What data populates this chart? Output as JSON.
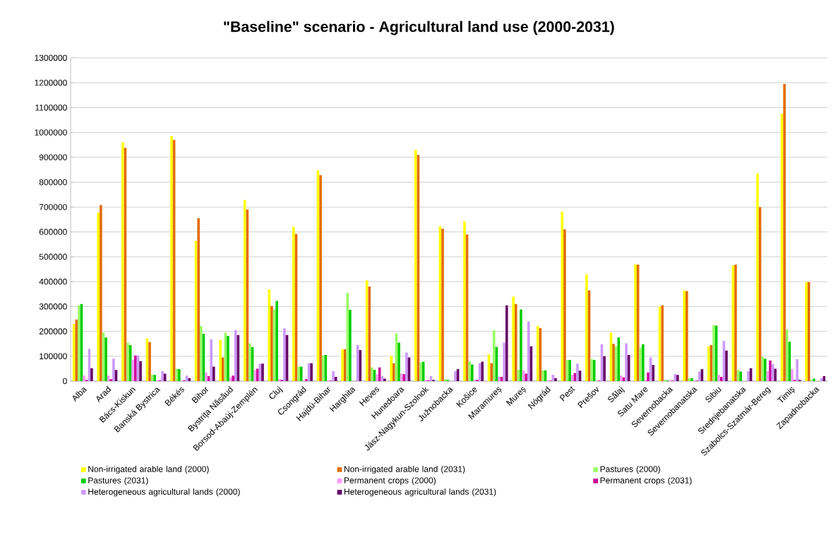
{
  "chart_data": {
    "type": "bar",
    "title": "\"Baseline\" scenario - Agricultural land use (2000-2031)",
    "categories": [
      "Alba",
      "Arad",
      "Bács-Kiskun",
      "Banská Bystrica",
      "Békés",
      "Bihor",
      "Bystrița Năsăud",
      "Borsod-Abaúj-Zemplén",
      "Cluj",
      "Csongrád",
      "Hajdú-Bihar",
      "Harghita",
      "Heves",
      "Hunedoara",
      "Jász-Nagykun-Szolnok",
      "Južnobacka",
      "Košice",
      "Maramureș",
      "Mureș",
      "Nógrád",
      "Pest",
      "Prešov",
      "Sălaj",
      "Satu Mare",
      "Severnobacka",
      "Severnobanatska",
      "Sibiu",
      "Srednjebanatska",
      "Szabolcs-Szatmár-Bereg",
      "Timiș",
      "Zapadnobacka"
    ],
    "series": [
      {
        "name": "Non-irrigated arable land (2000)",
        "color": "#ffff00",
        "values": [
          230000,
          678000,
          960000,
          172000,
          985000,
          565000,
          165000,
          728000,
          370000,
          620000,
          847000,
          128000,
          405000,
          102000,
          930000,
          623000,
          642000,
          107000,
          340000,
          222000,
          682000,
          430000,
          195000,
          470000,
          300000,
          365000,
          140000,
          465000,
          835000,
          1075000,
          398000
        ]
      },
      {
        "name": "Non-irrigated arable land (2031)",
        "color": "#e36c09",
        "values": [
          248000,
          708000,
          938000,
          157000,
          970000,
          655000,
          95000,
          690000,
          302000,
          592000,
          828000,
          128000,
          380000,
          72000,
          910000,
          613000,
          590000,
          72000,
          310000,
          213000,
          610000,
          365000,
          150000,
          468000,
          305000,
          362000,
          145000,
          468000,
          700000,
          1195000,
          398000
        ]
      },
      {
        "name": "Pastures (2000)",
        "color": "#99ff66",
        "values": [
          305000,
          195000,
          155000,
          25000,
          50000,
          222000,
          195000,
          152000,
          288000,
          58000,
          103000,
          355000,
          55000,
          192000,
          75000,
          8000,
          80000,
          205000,
          45000,
          43000,
          85000,
          88000,
          140000,
          135000,
          3000,
          12000,
          225000,
          45000,
          97000,
          208000,
          5000
        ]
      },
      {
        "name": "Pastures (2031)",
        "color": "#00cc00",
        "values": [
          310000,
          175000,
          145000,
          25000,
          48000,
          190000,
          182000,
          137000,
          322000,
          58000,
          105000,
          287000,
          45000,
          155000,
          78000,
          5000,
          67000,
          138000,
          288000,
          43000,
          85000,
          85000,
          175000,
          148000,
          3000,
          12000,
          223000,
          38000,
          90000,
          158000,
          10000
        ]
      },
      {
        "name": "Permanent crops (2000)",
        "color": "#ff99ff",
        "values": [
          22000,
          22000,
          85000,
          3000,
          2000,
          35000,
          15000,
          45000,
          8000,
          3000,
          2000,
          0,
          28000,
          30000,
          5000,
          0,
          5000,
          17000,
          43000,
          2000,
          25000,
          0,
          22000,
          5000,
          2000,
          2000,
          25000,
          0,
          40000,
          48000,
          0
        ]
      },
      {
        "name": "Permanent crops (2031)",
        "color": "#cc0099",
        "values": [
          5000,
          8000,
          103000,
          3000,
          3000,
          20000,
          22000,
          50000,
          5000,
          8000,
          2000,
          0,
          55000,
          28000,
          3000,
          0,
          5000,
          17000,
          30000,
          2000,
          32000,
          2000,
          15000,
          35000,
          2000,
          2000,
          17000,
          0,
          83000,
          5000,
          0
        ]
      },
      {
        "name": "Heterogeneous agricultural lands (2000)",
        "color": "#cc99ff",
        "values": [
          130000,
          90000,
          103000,
          40000,
          22000,
          168000,
          205000,
          70000,
          212000,
          72000,
          40000,
          145000,
          20000,
          115000,
          20000,
          40000,
          72000,
          155000,
          240000,
          25000,
          70000,
          148000,
          152000,
          95000,
          28000,
          38000,
          162000,
          40000,
          68000,
          88000,
          12000
        ]
      },
      {
        "name": "Heterogeneous agricultural lands (2031)",
        "color": "#660066",
        "values": [
          52000,
          45000,
          80000,
          30000,
          12000,
          58000,
          185000,
          70000,
          185000,
          72000,
          17000,
          125000,
          10000,
          95000,
          5000,
          48000,
          78000,
          305000,
          140000,
          12000,
          42000,
          100000,
          105000,
          65000,
          25000,
          48000,
          123000,
          52000,
          50000,
          5000,
          20000
        ]
      }
    ],
    "ylim": [
      0,
      1300000
    ],
    "yticks": [
      0,
      100000,
      200000,
      300000,
      400000,
      500000,
      600000,
      700000,
      800000,
      900000,
      1000000,
      1100000,
      1200000,
      1300000
    ],
    "grid": "y",
    "legend": "bottom"
  }
}
